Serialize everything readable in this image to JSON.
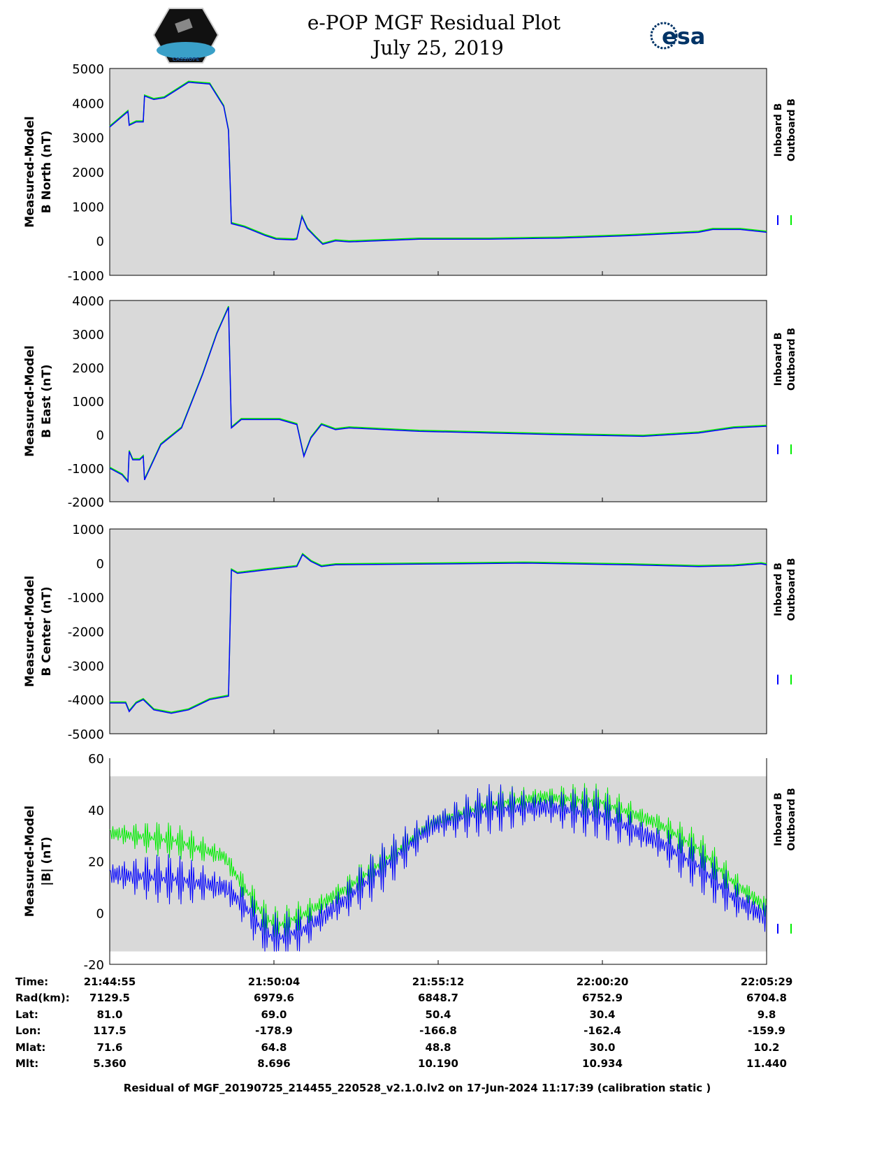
{
  "header": {
    "title_line1": "e-POP MGF Residual Plot",
    "title_line2": "July 25, 2019",
    "left_logo_text": "CASSIOPE",
    "right_logo_text": "esa"
  },
  "colors": {
    "inboard": "#0000ff",
    "outboard": "#00ee00",
    "plot_bg": "#d9d9d9"
  },
  "chart_data": [
    {
      "type": "line",
      "ylabel": [
        "Measured-Model",
        "B North (nT)"
      ],
      "ylim": [
        -1000,
        5000
      ],
      "yticks": [
        "5000",
        "4000",
        "3000",
        "2000",
        "1000",
        "0",
        "-1000"
      ],
      "ytick_values": [
        5000,
        4000,
        3000,
        2000,
        1000,
        0,
        -1000
      ],
      "legend": [
        "Inboard B",
        "Outboard B"
      ],
      "x_min": [
        0,
        0.57,
        0.61,
        0.83,
        1.05,
        1.09,
        1.38,
        1.71,
        2.47,
        3.13,
        3.57,
        3.72,
        3.81,
        4.22,
        4.88,
        5.21,
        5.75,
        5.86,
        6.02,
        6.19,
        6.45,
        6.67,
        7.07,
        7.5,
        9.69,
        11.88,
        14.07,
        16.26,
        18.44,
        18.88,
        19.75,
        20.57
      ],
      "values": [
        3300,
        3750,
        3350,
        3450,
        3450,
        4200,
        4100,
        4150,
        4600,
        4550,
        3900,
        3200,
        500,
        400,
        150,
        50,
        30,
        50,
        700,
        350,
        100,
        -100,
        0,
        -30,
        50,
        50,
        80,
        150,
        250,
        330,
        330,
        250
      ]
    },
    {
      "type": "line",
      "ylabel": [
        "Measured-Model",
        "B East (nT)"
      ],
      "ylim": [
        -2000,
        4000
      ],
      "yticks": [
        "4000",
        "3000",
        "2000",
        "1000",
        "0",
        "-1000",
        "-2000"
      ],
      "ytick_values": [
        4000,
        3000,
        2000,
        1000,
        0,
        -1000,
        -2000
      ],
      "legend": [
        "Inboard B",
        "Outboard B"
      ],
      "x_min": [
        0,
        0.39,
        0.57,
        0.61,
        0.72,
        0.94,
        1.05,
        1.09,
        1.6,
        2.25,
        2.91,
        3.35,
        3.72,
        3.81,
        4.12,
        5.32,
        5.86,
        6.08,
        6.3,
        6.63,
        7.07,
        7.5,
        9.69,
        14.07,
        16.7,
        18.44,
        19.53,
        20.57
      ],
      "values": [
        -1000,
        -1200,
        -1400,
        -500,
        -750,
        -750,
        -650,
        -1350,
        -300,
        200,
        1800,
        3000,
        3800,
        200,
        450,
        450,
        300,
        -650,
        -100,
        300,
        150,
        200,
        100,
        0,
        -50,
        50,
        200,
        250
      ]
    },
    {
      "type": "line",
      "ylabel": [
        "Measured-Model",
        "B Center (nT)"
      ],
      "ylim": [
        -5000,
        1000
      ],
      "yticks": [
        "1000",
        "0",
        "-1000",
        "-2000",
        "-3000",
        "-4000",
        "-5000"
      ],
      "ytick_values": [
        1000,
        0,
        -1000,
        -2000,
        -3000,
        -4000,
        -5000
      ],
      "legend": [
        "Inboard B",
        "Outboard B"
      ],
      "x_min": [
        0,
        0.5,
        0.61,
        0.83,
        1.05,
        1.38,
        1.93,
        2.47,
        3.13,
        3.72,
        3.81,
        4.0,
        4.88,
        5.86,
        6.04,
        6.3,
        6.63,
        7.07,
        9.69,
        12.97,
        16.26,
        18.44,
        19.53,
        20.4,
        20.57
      ],
      "values": [
        -4100,
        -4100,
        -4350,
        -4100,
        -4000,
        -4300,
        -4400,
        -4300,
        -4000,
        -3900,
        -200,
        -300,
        -200,
        -100,
        250,
        50,
        -100,
        -50,
        -30,
        0,
        -50,
        -100,
        -80,
        -20,
        -50
      ]
    },
    {
      "type": "line",
      "ylabel": [
        "Measured-Model",
        "|B| (nT)"
      ],
      "ylim": [
        -20,
        60
      ],
      "yticks": [
        "60",
        "40",
        "20",
        "0",
        "-20"
      ],
      "ytick_values": [
        60,
        40,
        20,
        0,
        -20
      ],
      "legend": [
        "Inboard B",
        "Outboard B"
      ],
      "x_min": [
        0,
        2.03,
        3.57,
        4.2,
        4.86,
        5.3,
        6.17,
        7.48,
        8.79,
        10.1,
        11.86,
        13.61,
        15.36,
        17.11,
        18.42,
        19.51,
        20.57
      ],
      "outboard": [
        31,
        28,
        22,
        10,
        -2,
        -5,
        0,
        10,
        22,
        35,
        42,
        45,
        43,
        35,
        25,
        12,
        2
      ],
      "inboard": [
        15,
        13,
        10,
        3,
        -8,
        -10,
        -6,
        6,
        20,
        34,
        40,
        41,
        38,
        28,
        18,
        6,
        -2
      ]
    }
  ],
  "time_axis": {
    "labels": [
      "Time:",
      "Rad(km):",
      "Lat:",
      "Lon:",
      "Mlat:",
      "Mlt:"
    ],
    "columns": [
      [
        "21:44:55",
        "7129.5",
        "81.0",
        "117.5",
        "71.6",
        "5.360"
      ],
      [
        "21:50:04",
        "6979.6",
        "69.0",
        "-178.9",
        "64.8",
        "8.696"
      ],
      [
        "21:55:12",
        "6848.7",
        "50.4",
        "-166.8",
        "48.8",
        "10.190"
      ],
      [
        "22:00:20",
        "6752.9",
        "30.4",
        "-162.4",
        "30.0",
        "10.934"
      ],
      [
        "22:05:29",
        "6704.8",
        "9.8",
        "-159.9",
        "10.2",
        "11.440"
      ]
    ]
  },
  "footer": "Residual of MGF_20190725_214455_220528_v2.1.0.lv2 on 17-Jun-2024 11:17:39 (calibration static )"
}
